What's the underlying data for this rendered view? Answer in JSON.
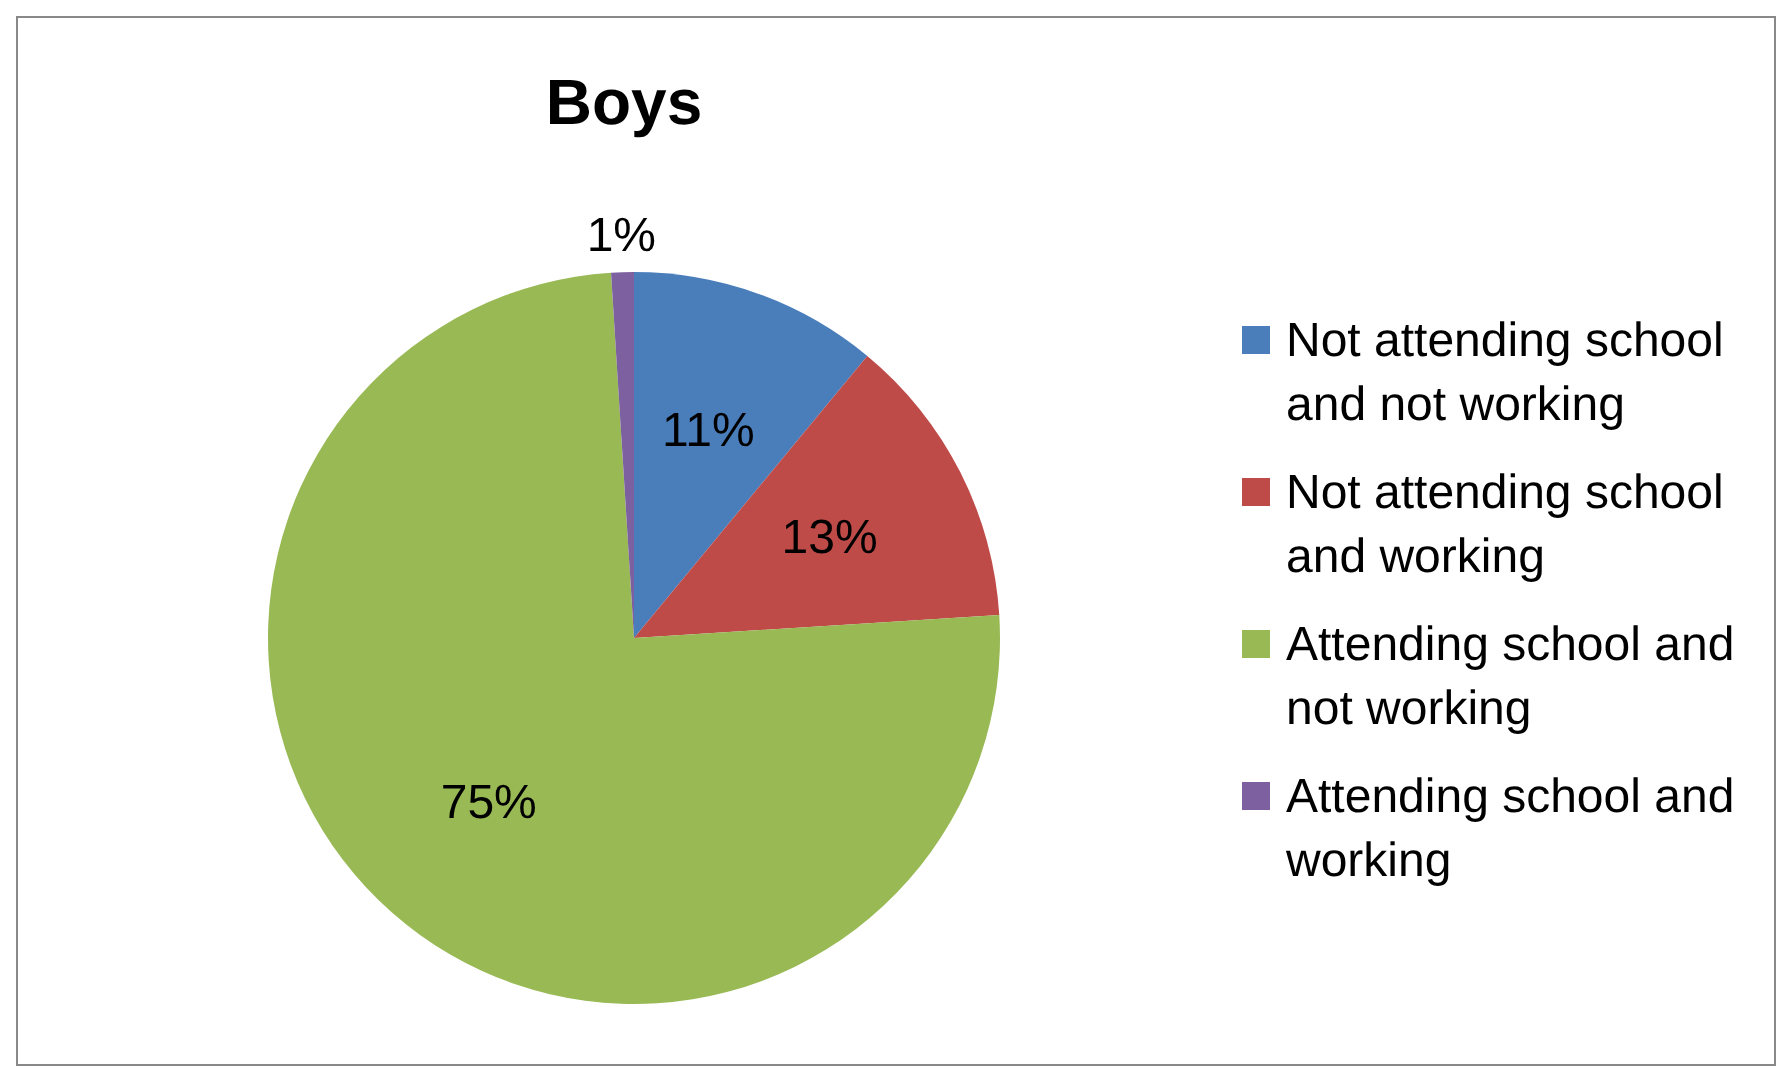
{
  "chart_data": {
    "type": "pie",
    "title": "Boys",
    "categories": [
      "Not attending school and not working",
      "Not attending school and working",
      "Attending school and not working",
      "Attending school and working"
    ],
    "values": [
      11,
      13,
      75,
      1
    ],
    "colors": [
      "#4a7ebb",
      "#be4b48",
      "#98b954",
      "#7d60a0"
    ],
    "value_labels": [
      "11%",
      "13%",
      "75%",
      "1%"
    ],
    "legend": "right"
  }
}
